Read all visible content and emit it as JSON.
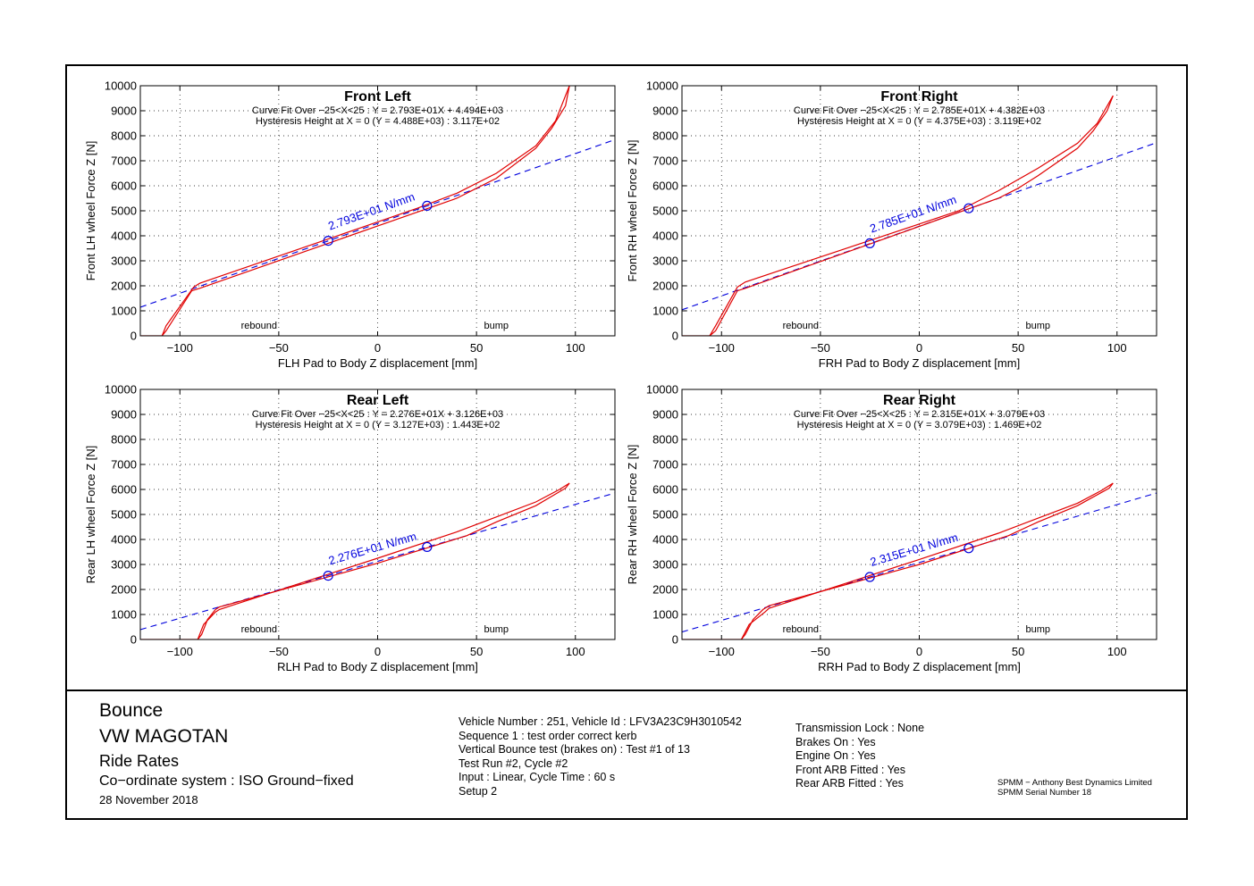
{
  "colors": {
    "measured": "#e00000",
    "fit": "#0000dd",
    "frame": "#000000"
  },
  "chart_data": [
    {
      "type": "line",
      "title": "Front Left",
      "xlabel": "FLH Pad to Body Z displacement [mm]",
      "ylabel": "Front LH wheel Force Z [N]",
      "xlim": [
        -120,
        120
      ],
      "ylim": [
        0,
        10000
      ],
      "xticks": [
        -100,
        -50,
        0,
        50,
        100
      ],
      "yticks": [
        0,
        1000,
        2000,
        3000,
        4000,
        5000,
        6000,
        7000,
        8000,
        9000,
        10000
      ],
      "grid": true,
      "annotations": [
        "Curve Fit Over −25<X<25 : Y = 2.793E+01X + 4.494E+03",
        "Hysteresis Height at X = 0 (Y = 4.488E+03) : 3.117E+02"
      ],
      "region_labels": [
        "rebound",
        "bump"
      ],
      "fit_label": "2.793E+01 N/mm",
      "fit": {
        "slope": 27.93,
        "intercept": 4494
      },
      "markers": [
        {
          "x": -25,
          "y": 3800
        },
        {
          "x": 25,
          "y": 5200
        }
      ],
      "series": [
        {
          "values_x": [
            -120,
            -109,
            -107,
            -93,
            -90,
            20,
            40,
            60,
            80,
            90,
            97
          ],
          "values_y": [
            0,
            0,
            400,
            1950,
            2100,
            5100,
            5700,
            6500,
            7600,
            8600,
            10000
          ]
        },
        {
          "values_x": [
            97,
            95,
            88,
            80,
            60,
            50,
            40,
            -90,
            -94,
            -107,
            -109
          ],
          "values_y": [
            10000,
            9200,
            8300,
            7500,
            6300,
            5900,
            5500,
            1900,
            1800,
            200,
            0
          ]
        }
      ]
    },
    {
      "type": "line",
      "title": "Front Right",
      "xlabel": "FRH Pad to Body Z displacement [mm]",
      "ylabel": "Front RH wheel Force Z [N]",
      "xlim": [
        -120,
        120
      ],
      "ylim": [
        0,
        10000
      ],
      "xticks": [
        -100,
        -50,
        0,
        50,
        100
      ],
      "yticks": [
        0,
        1000,
        2000,
        3000,
        4000,
        5000,
        6000,
        7000,
        8000,
        9000,
        10000
      ],
      "grid": true,
      "annotations": [
        "Curve Fit Over −25<X<25 : Y = 2.785E+01X + 4.382E+03",
        "Hysteresis Height at X = 0 (Y = 4.375E+03) : 3.119E+02"
      ],
      "region_labels": [
        "rebound",
        "bump"
      ],
      "fit_label": "2.785E+01 N/mm",
      "fit": {
        "slope": 27.85,
        "intercept": 4382
      },
      "markers": [
        {
          "x": -25,
          "y": 3700
        },
        {
          "x": 25,
          "y": 5100
        }
      ],
      "series": [
        {
          "values_x": [
            -120,
            -106,
            -103,
            -92,
            -88,
            20,
            40,
            60,
            80,
            90,
            98
          ],
          "values_y": [
            0,
            0,
            400,
            1950,
            2150,
            5000,
            5800,
            6700,
            7700,
            8500,
            9600
          ]
        },
        {
          "values_x": [
            98,
            95,
            88,
            80,
            60,
            50,
            40,
            -88,
            -92,
            -103,
            -106
          ],
          "values_y": [
            9600,
            9000,
            8200,
            7500,
            6400,
            5900,
            5500,
            1900,
            1800,
            200,
            0
          ]
        }
      ]
    },
    {
      "type": "line",
      "title": "Rear Left",
      "xlabel": "RLH Pad to Body Z displacement [mm]",
      "ylabel": "Rear LH wheel Force Z [N]",
      "xlim": [
        -120,
        120
      ],
      "ylim": [
        0,
        10000
      ],
      "xticks": [
        -100,
        -50,
        0,
        50,
        100
      ],
      "yticks": [
        0,
        1000,
        2000,
        3000,
        4000,
        5000,
        6000,
        7000,
        8000,
        9000,
        10000
      ],
      "grid": true,
      "annotations": [
        "Curve Fit Over −25<X<25 : Y = 2.276E+01X + 3.126E+03",
        "Hysteresis Height at X = 0 (Y = 3.127E+03) : 1.443E+02"
      ],
      "region_labels": [
        "rebound",
        "bump"
      ],
      "fit_label": "2.276E+01 N/mm",
      "fit": {
        "slope": 22.76,
        "intercept": 3126
      },
      "markers": [
        {
          "x": -25,
          "y": 2550
        },
        {
          "x": 25,
          "y": 3700
        }
      ],
      "series": [
        {
          "values_x": [
            -120,
            -91,
            -88,
            -82,
            -80,
            0,
            40,
            60,
            80,
            92,
            97
          ],
          "values_y": [
            0,
            0,
            600,
            1100,
            1200,
            3250,
            4300,
            4900,
            5500,
            6000,
            6250
          ]
        },
        {
          "values_x": [
            97,
            95,
            80,
            60,
            45,
            0,
            -80,
            -82,
            -86,
            -89,
            -91
          ],
          "values_y": [
            6250,
            6050,
            5350,
            4700,
            4150,
            3050,
            1300,
            1200,
            800,
            200,
            0
          ]
        }
      ]
    },
    {
      "type": "line",
      "title": "Rear Right",
      "xlabel": "RRH Pad to Body Z displacement [mm]",
      "ylabel": "Rear RH wheel Force Z [N]",
      "xlim": [
        -120,
        120
      ],
      "ylim": [
        0,
        10000
      ],
      "xticks": [
        -100,
        -50,
        0,
        50,
        100
      ],
      "yticks": [
        0,
        1000,
        2000,
        3000,
        4000,
        5000,
        6000,
        7000,
        8000,
        9000,
        10000
      ],
      "grid": true,
      "annotations": [
        "Curve Fit Over −25<X<25 : Y = 2.315E+01X + 3.079E+03",
        "Hysteresis Height at X = 0 (Y = 3.079E+03) : 1.469E+02"
      ],
      "region_labels": [
        "rebound",
        "bump"
      ],
      "fit_label": "2.315E+01 N/mm",
      "fit": {
        "slope": 23.15,
        "intercept": 3079
      },
      "markers": [
        {
          "x": -25,
          "y": 2500
        },
        {
          "x": 25,
          "y": 3650
        }
      ],
      "series": [
        {
          "values_x": [
            -120,
            -90,
            -86,
            -78,
            -76,
            0,
            40,
            60,
            80,
            92,
            98
          ],
          "values_y": [
            0,
            0,
            600,
            1100,
            1250,
            3200,
            4250,
            4850,
            5450,
            5950,
            6250
          ]
        },
        {
          "values_x": [
            98,
            96,
            80,
            60,
            45,
            0,
            -76,
            -79,
            -84,
            -88,
            -90
          ],
          "values_y": [
            6250,
            6050,
            5350,
            4700,
            4150,
            3000,
            1350,
            1200,
            800,
            200,
            0
          ]
        }
      ]
    }
  ],
  "footer": {
    "title": "Bounce",
    "vehicle": "VW MAGOTAN",
    "test_type": "Ride Rates",
    "coordinate_system": "Co−ordinate system : ISO Ground−fixed",
    "date": "28 November 2018",
    "test_info": [
      "Vehicle Number : 251, Vehicle Id : LFV3A23C9H3010542",
      "Sequence 1 : test order correct kerb",
      "Vertical Bounce test (brakes on) : Test #1 of 13",
      "Test Run #2, Cycle #2",
      "Input : Linear, Cycle Time : 60 s",
      "Setup 2"
    ],
    "settings": [
      "Transmission Lock : None",
      "Brakes On : Yes",
      "Engine On : Yes",
      "Front ARB Fitted : Yes",
      "Rear ARB Fitted : Yes"
    ],
    "company": [
      "SPMM − Anthony Best Dynamics Limited",
      "SPMM Serial Number 18"
    ]
  }
}
